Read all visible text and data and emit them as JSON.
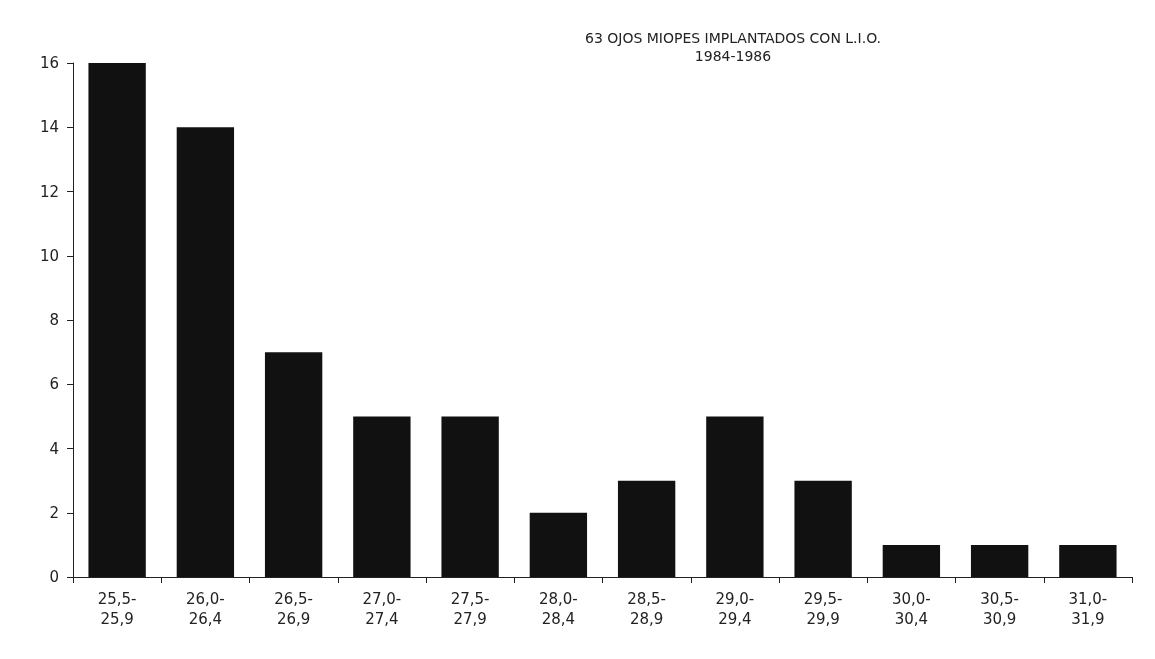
{
  "chart_data": {
    "type": "bar",
    "title": "63 OJOS MIOPES IMPLANTADOS CON L.I.O.",
    "subtitle": "1984-1986",
    "categories": [
      "25,5-\n25,9",
      "26,0-\n26,4",
      "26,5-\n26,9",
      "27,0-\n27,4",
      "27,5-\n27,9",
      "28,0-\n28,4",
      "28,5-\n28,9",
      "29,0-\n29,4",
      "29,5-\n29,9",
      "30,0-\n30,4",
      "30,5-\n30,9",
      "31,0-\n31,9"
    ],
    "values": [
      16,
      14,
      7,
      5,
      5,
      2,
      3,
      5,
      3,
      1,
      1,
      1
    ],
    "color": "#111111",
    "ylim": [
      0,
      16
    ],
    "yticks": [
      0,
      2,
      4,
      6,
      8,
      10,
      12,
      14,
      16
    ],
    "grid": false
  }
}
